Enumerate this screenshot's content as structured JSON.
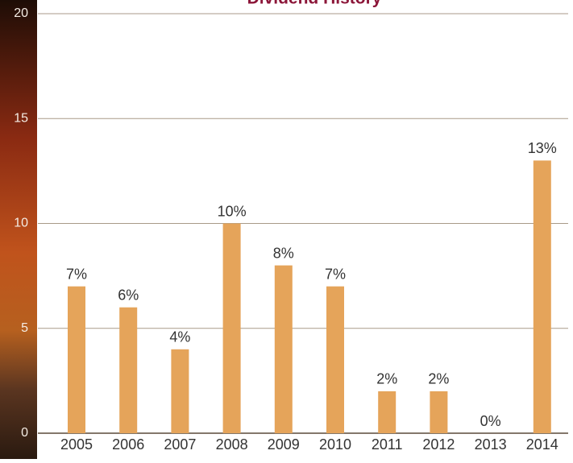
{
  "chart_data": {
    "type": "bar",
    "title": "Dividend History",
    "categories": [
      "2005",
      "2006",
      "2007",
      "2008",
      "2009",
      "2010",
      "2011",
      "2012",
      "2013",
      "2014"
    ],
    "values": [
      7,
      6,
      4,
      10,
      8,
      7,
      2,
      2,
      0,
      13
    ],
    "value_labels": [
      "7%",
      "6%",
      "4%",
      "10%",
      "8%",
      "7%",
      "2%",
      "2%",
      "0%",
      "13%"
    ],
    "color": "#e5a45a",
    "ylim": [
      0,
      20
    ],
    "yticks": [
      0,
      5,
      10,
      15,
      20
    ],
    "grid": true
  }
}
